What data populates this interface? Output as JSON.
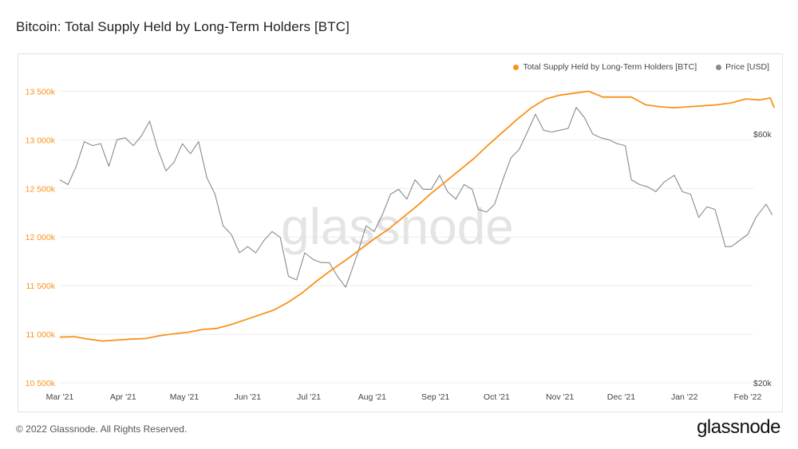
{
  "title": "Bitcoin: Total Supply Held by Long-Term Holders [BTC]",
  "footer": {
    "copyright": "© 2022 Glassnode. All Rights Reserved.",
    "logo": "glassnode"
  },
  "watermark": "glassnode",
  "colors": {
    "supply": "#f7931a",
    "price": "#8a8a8a",
    "grid": "#ececec",
    "left_axis_text": "#f7931a",
    "right_axis_text": "#444444",
    "watermark": "#e4e4e4"
  },
  "chart_data": {
    "type": "line",
    "x_axis": {
      "start": "2021-03-01",
      "end": "2022-02-01",
      "tick_labels": [
        "Mar '21",
        "Apr '21",
        "May '21",
        "Jun '21",
        "Jul '21",
        "Aug '21",
        "Sep '21",
        "Oct '21",
        "Nov '21",
        "Dec '21",
        "Jan '22",
        "Feb '22"
      ],
      "tick_dates": [
        "2021-03-01",
        "2021-04-01",
        "2021-05-01",
        "2021-06-01",
        "2021-07-01",
        "2021-08-01",
        "2021-09-01",
        "2021-10-01",
        "2021-11-01",
        "2021-12-01",
        "2022-01-01",
        "2022-02-01"
      ]
    },
    "y_left": {
      "range": [
        10500000,
        13700000
      ],
      "tick_values": [
        10500000,
        11000000,
        11500000,
        12000000,
        12500000,
        13000000,
        13500000
      ],
      "tick_labels": [
        "10 500k",
        "11 000k",
        "11 500k",
        "12 000k",
        "12 500k",
        "13 000k",
        "13 500k"
      ]
    },
    "y_right": {
      "scale": "log",
      "tick_values": [
        20000,
        60000
      ],
      "tick_labels": [
        "$20k",
        "$60k"
      ]
    },
    "grid": true,
    "legend_position": "top-right",
    "series": [
      {
        "name": "Total Supply Held by Long-Term Holders [BTC]",
        "axis": "left",
        "color": "#f7931a",
        "points": [
          [
            "2021-03-01",
            10970000
          ],
          [
            "2021-03-08",
            10975000
          ],
          [
            "2021-03-15",
            10950000
          ],
          [
            "2021-03-22",
            10930000
          ],
          [
            "2021-03-29",
            10940000
          ],
          [
            "2021-04-05",
            10950000
          ],
          [
            "2021-04-12",
            10955000
          ],
          [
            "2021-04-19",
            10985000
          ],
          [
            "2021-04-26",
            11005000
          ],
          [
            "2021-05-03",
            11020000
          ],
          [
            "2021-05-10",
            11050000
          ],
          [
            "2021-05-17",
            11060000
          ],
          [
            "2021-05-24",
            11100000
          ],
          [
            "2021-05-31",
            11150000
          ],
          [
            "2021-06-07",
            11200000
          ],
          [
            "2021-06-14",
            11250000
          ],
          [
            "2021-06-21",
            11330000
          ],
          [
            "2021-06-28",
            11430000
          ],
          [
            "2021-07-05",
            11550000
          ],
          [
            "2021-07-12",
            11660000
          ],
          [
            "2021-07-19",
            11760000
          ],
          [
            "2021-07-26",
            11870000
          ],
          [
            "2021-08-02",
            11980000
          ],
          [
            "2021-08-09",
            12080000
          ],
          [
            "2021-08-16",
            12200000
          ],
          [
            "2021-08-23",
            12320000
          ],
          [
            "2021-08-30",
            12450000
          ],
          [
            "2021-09-06",
            12570000
          ],
          [
            "2021-09-13",
            12690000
          ],
          [
            "2021-09-20",
            12810000
          ],
          [
            "2021-09-27",
            12950000
          ],
          [
            "2021-10-04",
            13080000
          ],
          [
            "2021-10-11",
            13210000
          ],
          [
            "2021-10-18",
            13330000
          ],
          [
            "2021-10-25",
            13420000
          ],
          [
            "2021-11-01",
            13460000
          ],
          [
            "2021-11-08",
            13480000
          ],
          [
            "2021-11-15",
            13500000
          ],
          [
            "2021-11-22",
            13440000
          ],
          [
            "2021-11-29",
            13440000
          ],
          [
            "2021-12-06",
            13440000
          ],
          [
            "2021-12-13",
            13360000
          ],
          [
            "2021-12-20",
            13340000
          ],
          [
            "2021-12-27",
            13330000
          ],
          [
            "2022-01-03",
            13340000
          ],
          [
            "2022-01-10",
            13350000
          ],
          [
            "2022-01-17",
            13360000
          ],
          [
            "2022-01-24",
            13380000
          ],
          [
            "2022-01-31",
            13420000
          ],
          [
            "2022-02-07",
            13410000
          ],
          [
            "2022-02-12",
            13430000
          ],
          [
            "2022-02-14",
            13330000
          ]
        ]
      },
      {
        "name": "Price [USD]",
        "axis": "right",
        "color": "#8a8a8a",
        "points": [
          [
            "2021-03-01",
            49000
          ],
          [
            "2021-03-05",
            48000
          ],
          [
            "2021-03-09",
            52000
          ],
          [
            "2021-03-13",
            58000
          ],
          [
            "2021-03-17",
            57000
          ],
          [
            "2021-03-21",
            57500
          ],
          [
            "2021-03-25",
            52000
          ],
          [
            "2021-03-29",
            58500
          ],
          [
            "2021-04-02",
            59000
          ],
          [
            "2021-04-06",
            57000
          ],
          [
            "2021-04-10",
            59500
          ],
          [
            "2021-04-14",
            63500
          ],
          [
            "2021-04-18",
            56000
          ],
          [
            "2021-04-22",
            51000
          ],
          [
            "2021-04-26",
            53000
          ],
          [
            "2021-04-30",
            57500
          ],
          [
            "2021-05-04",
            55000
          ],
          [
            "2021-05-08",
            58000
          ],
          [
            "2021-05-12",
            49500
          ],
          [
            "2021-05-16",
            46000
          ],
          [
            "2021-05-20",
            40000
          ],
          [
            "2021-05-24",
            38500
          ],
          [
            "2021-05-28",
            35500
          ],
          [
            "2021-06-01",
            36500
          ],
          [
            "2021-06-05",
            35500
          ],
          [
            "2021-06-09",
            37500
          ],
          [
            "2021-06-13",
            39000
          ],
          [
            "2021-06-17",
            38000
          ],
          [
            "2021-06-21",
            32000
          ],
          [
            "2021-06-25",
            31500
          ],
          [
            "2021-06-29",
            35500
          ],
          [
            "2021-07-03",
            34500
          ],
          [
            "2021-07-07",
            34000
          ],
          [
            "2021-07-11",
            34000
          ],
          [
            "2021-07-15",
            32000
          ],
          [
            "2021-07-19",
            30500
          ],
          [
            "2021-07-21",
            32000
          ],
          [
            "2021-07-25",
            35500
          ],
          [
            "2021-07-29",
            40000
          ],
          [
            "2021-08-02",
            39000
          ],
          [
            "2021-08-06",
            42000
          ],
          [
            "2021-08-10",
            46000
          ],
          [
            "2021-08-14",
            47000
          ],
          [
            "2021-08-18",
            45000
          ],
          [
            "2021-08-22",
            49000
          ],
          [
            "2021-08-26",
            47000
          ],
          [
            "2021-08-30",
            47000
          ],
          [
            "2021-09-03",
            50000
          ],
          [
            "2021-09-07",
            46500
          ],
          [
            "2021-09-11",
            45000
          ],
          [
            "2021-09-15",
            48000
          ],
          [
            "2021-09-19",
            47000
          ],
          [
            "2021-09-22",
            43000
          ],
          [
            "2021-09-26",
            42500
          ],
          [
            "2021-09-30",
            44000
          ],
          [
            "2021-10-04",
            49000
          ],
          [
            "2021-10-08",
            54000
          ],
          [
            "2021-10-12",
            56000
          ],
          [
            "2021-10-16",
            60500
          ],
          [
            "2021-10-20",
            65500
          ],
          [
            "2021-10-24",
            61000
          ],
          [
            "2021-10-28",
            60500
          ],
          [
            "2021-11-01",
            61000
          ],
          [
            "2021-11-05",
            61500
          ],
          [
            "2021-11-09",
            67500
          ],
          [
            "2021-11-13",
            64500
          ],
          [
            "2021-11-17",
            60000
          ],
          [
            "2021-11-21",
            59000
          ],
          [
            "2021-11-25",
            58500
          ],
          [
            "2021-11-29",
            57500
          ],
          [
            "2021-12-03",
            57000
          ],
          [
            "2021-12-06",
            49000
          ],
          [
            "2021-12-10",
            48000
          ],
          [
            "2021-12-14",
            47500
          ],
          [
            "2021-12-18",
            46500
          ],
          [
            "2021-12-22",
            48500
          ],
          [
            "2021-12-27",
            50000
          ],
          [
            "2021-12-31",
            46500
          ],
          [
            "2022-01-04",
            46000
          ],
          [
            "2022-01-08",
            41500
          ],
          [
            "2022-01-12",
            43500
          ],
          [
            "2022-01-16",
            43000
          ],
          [
            "2022-01-21",
            36500
          ],
          [
            "2022-01-24",
            36500
          ],
          [
            "2022-01-28",
            37500
          ],
          [
            "2022-02-01",
            38500
          ],
          [
            "2022-02-05",
            41500
          ],
          [
            "2022-02-10",
            44000
          ],
          [
            "2022-02-13",
            42000
          ]
        ]
      }
    ]
  }
}
